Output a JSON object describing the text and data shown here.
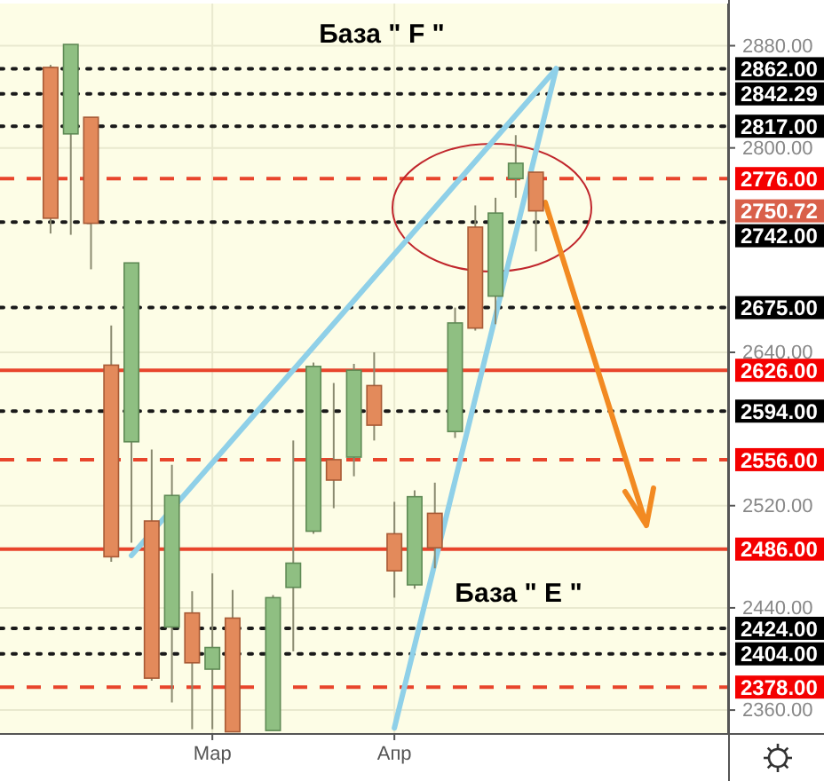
{
  "chart_data": {
    "type": "candlestick",
    "categories": [
      null,
      null,
      null,
      null,
      null,
      null,
      null,
      null,
      null,
      null,
      "Мар",
      null,
      null,
      null,
      null,
      null,
      null,
      null,
      null,
      "Апр",
      null,
      null,
      null,
      null,
      null,
      null,
      null,
      null,
      null,
      null,
      null,
      null,
      null,
      null,
      null,
      null
    ],
    "ohlc": [
      null,
      null,
      [
        2863,
        2865,
        2733,
        2745
      ],
      [
        2811,
        2881,
        2732,
        2881
      ],
      [
        2824,
        2824,
        2705,
        2741
      ],
      [
        2630,
        2661,
        2476,
        2480
      ],
      [
        2570,
        2710,
        2491,
        2710
      ],
      [
        2508,
        2564,
        2383,
        2385
      ],
      [
        2425,
        2552,
        2366,
        2528
      ],
      [
        2436,
        2453,
        2345,
        2397
      ],
      [
        2392,
        2467,
        2345,
        2409
      ],
      [
        2432,
        2454,
        2343,
        2343
      ],
      null,
      [
        2344,
        2450,
        2344,
        2448
      ],
      [
        2456,
        2571,
        2406,
        2475
      ],
      [
        2500,
        2632,
        2498,
        2629
      ],
      [
        2556,
        2616,
        2518,
        2540
      ],
      [
        2558,
        2631,
        2543,
        2626
      ],
      [
        2614,
        2640,
        2571,
        2583
      ],
      [
        2498,
        2523,
        2448,
        2469
      ],
      [
        2458,
        2532,
        2455,
        2527
      ],
      [
        2514,
        2538,
        2471,
        2487
      ],
      [
        2578,
        2675,
        2573,
        2663
      ],
      [
        2738,
        2755,
        2657,
        2659
      ],
      [
        2684,
        2761,
        2662,
        2749
      ],
      [
        2776,
        2810,
        2761,
        2788
      ],
      [
        2781,
        2781,
        2719,
        2750.72
      ],
      null,
      null,
      null,
      null,
      null,
      null,
      null,
      null,
      null
    ],
    "series": [
      {
        "type": "line",
        "color": "#8fd0e8",
        "values": [
          null,
          null,
          null,
          null,
          null,
          null,
          2481,
          null,
          null,
          null,
          null,
          null,
          null,
          null,
          null,
          null,
          null,
          null,
          null,
          null,
          null,
          null,
          null,
          null,
          null,
          null,
          null,
          2862,
          null,
          null,
          null,
          null,
          null,
          null,
          null,
          null
        ]
      },
      {
        "type": "line",
        "color": "#8fd0e8",
        "values": [
          null,
          null,
          null,
          null,
          null,
          null,
          null,
          null,
          null,
          null,
          null,
          null,
          null,
          null,
          null,
          null,
          null,
          null,
          null,
          2346,
          null,
          null,
          null,
          null,
          null,
          null,
          null,
          2862,
          null,
          null,
          null,
          null,
          null,
          null,
          null,
          null
        ]
      }
    ],
    "ylim": [
      2342,
      2913
    ],
    "yticks": [
      {
        "value": 2880,
        "label": "2880.00"
      },
      {
        "value": 2800,
        "label": "2800.00"
      },
      {
        "value": 2640,
        "label": "2640.00"
      },
      {
        "value": 2520,
        "label": "2520.00"
      },
      {
        "value": 2440,
        "label": "2440.00"
      },
      {
        "value": 2360,
        "label": "2360.00"
      }
    ],
    "grid": true,
    "ref_lines": [
      {
        "axis": "y",
        "value": 2862,
        "label": "2862.00",
        "color": "#1a1a1a",
        "line_style": "dotted"
      },
      {
        "axis": "y",
        "value": 2842.29,
        "label": "2842.29",
        "color": "#1a1a1a",
        "line_style": "dotted"
      },
      {
        "axis": "y",
        "value": 2817,
        "label": "2817.00",
        "color": "#1a1a1a",
        "line_style": "dotted"
      },
      {
        "axis": "y",
        "value": 2776,
        "label": "2776.00",
        "color": "#e8452c",
        "line_style": "dashed"
      },
      {
        "axis": "y",
        "value": 2742,
        "label": "2742.00",
        "color": "#1a1a1a",
        "line_style": "dotted"
      },
      {
        "axis": "y",
        "value": 2675,
        "label": "2675.00",
        "color": "#1a1a1a",
        "line_style": "dotted"
      },
      {
        "axis": "y",
        "value": 2626,
        "label": "2626.00",
        "color": "#e8452c",
        "line_style": "solid"
      },
      {
        "axis": "y",
        "value": 2594,
        "label": "2594.00",
        "color": "#1a1a1a",
        "line_style": "dotted"
      },
      {
        "axis": "y",
        "value": 2556,
        "label": "2556.00",
        "color": "#e8452c",
        "line_style": "dashed"
      },
      {
        "axis": "y",
        "value": 2486,
        "label": "2486.00",
        "color": "#e8452c",
        "line_style": "solid"
      },
      {
        "axis": "y",
        "value": 2424,
        "label": "2424.00",
        "color": "#1a1a1a",
        "line_style": "dotted"
      },
      {
        "axis": "y",
        "value": 2404,
        "label": "2404.00",
        "color": "#1a1a1a",
        "line_style": "dotted"
      },
      {
        "axis": "y",
        "value": 2378,
        "label": "2378.00",
        "color": "#e8452c",
        "line_style": "dashed"
      }
    ],
    "annotations": [
      {
        "text": "База \" F \""
      },
      {
        "text": "База \" E \""
      },
      "2750.72"
    ]
  }
}
